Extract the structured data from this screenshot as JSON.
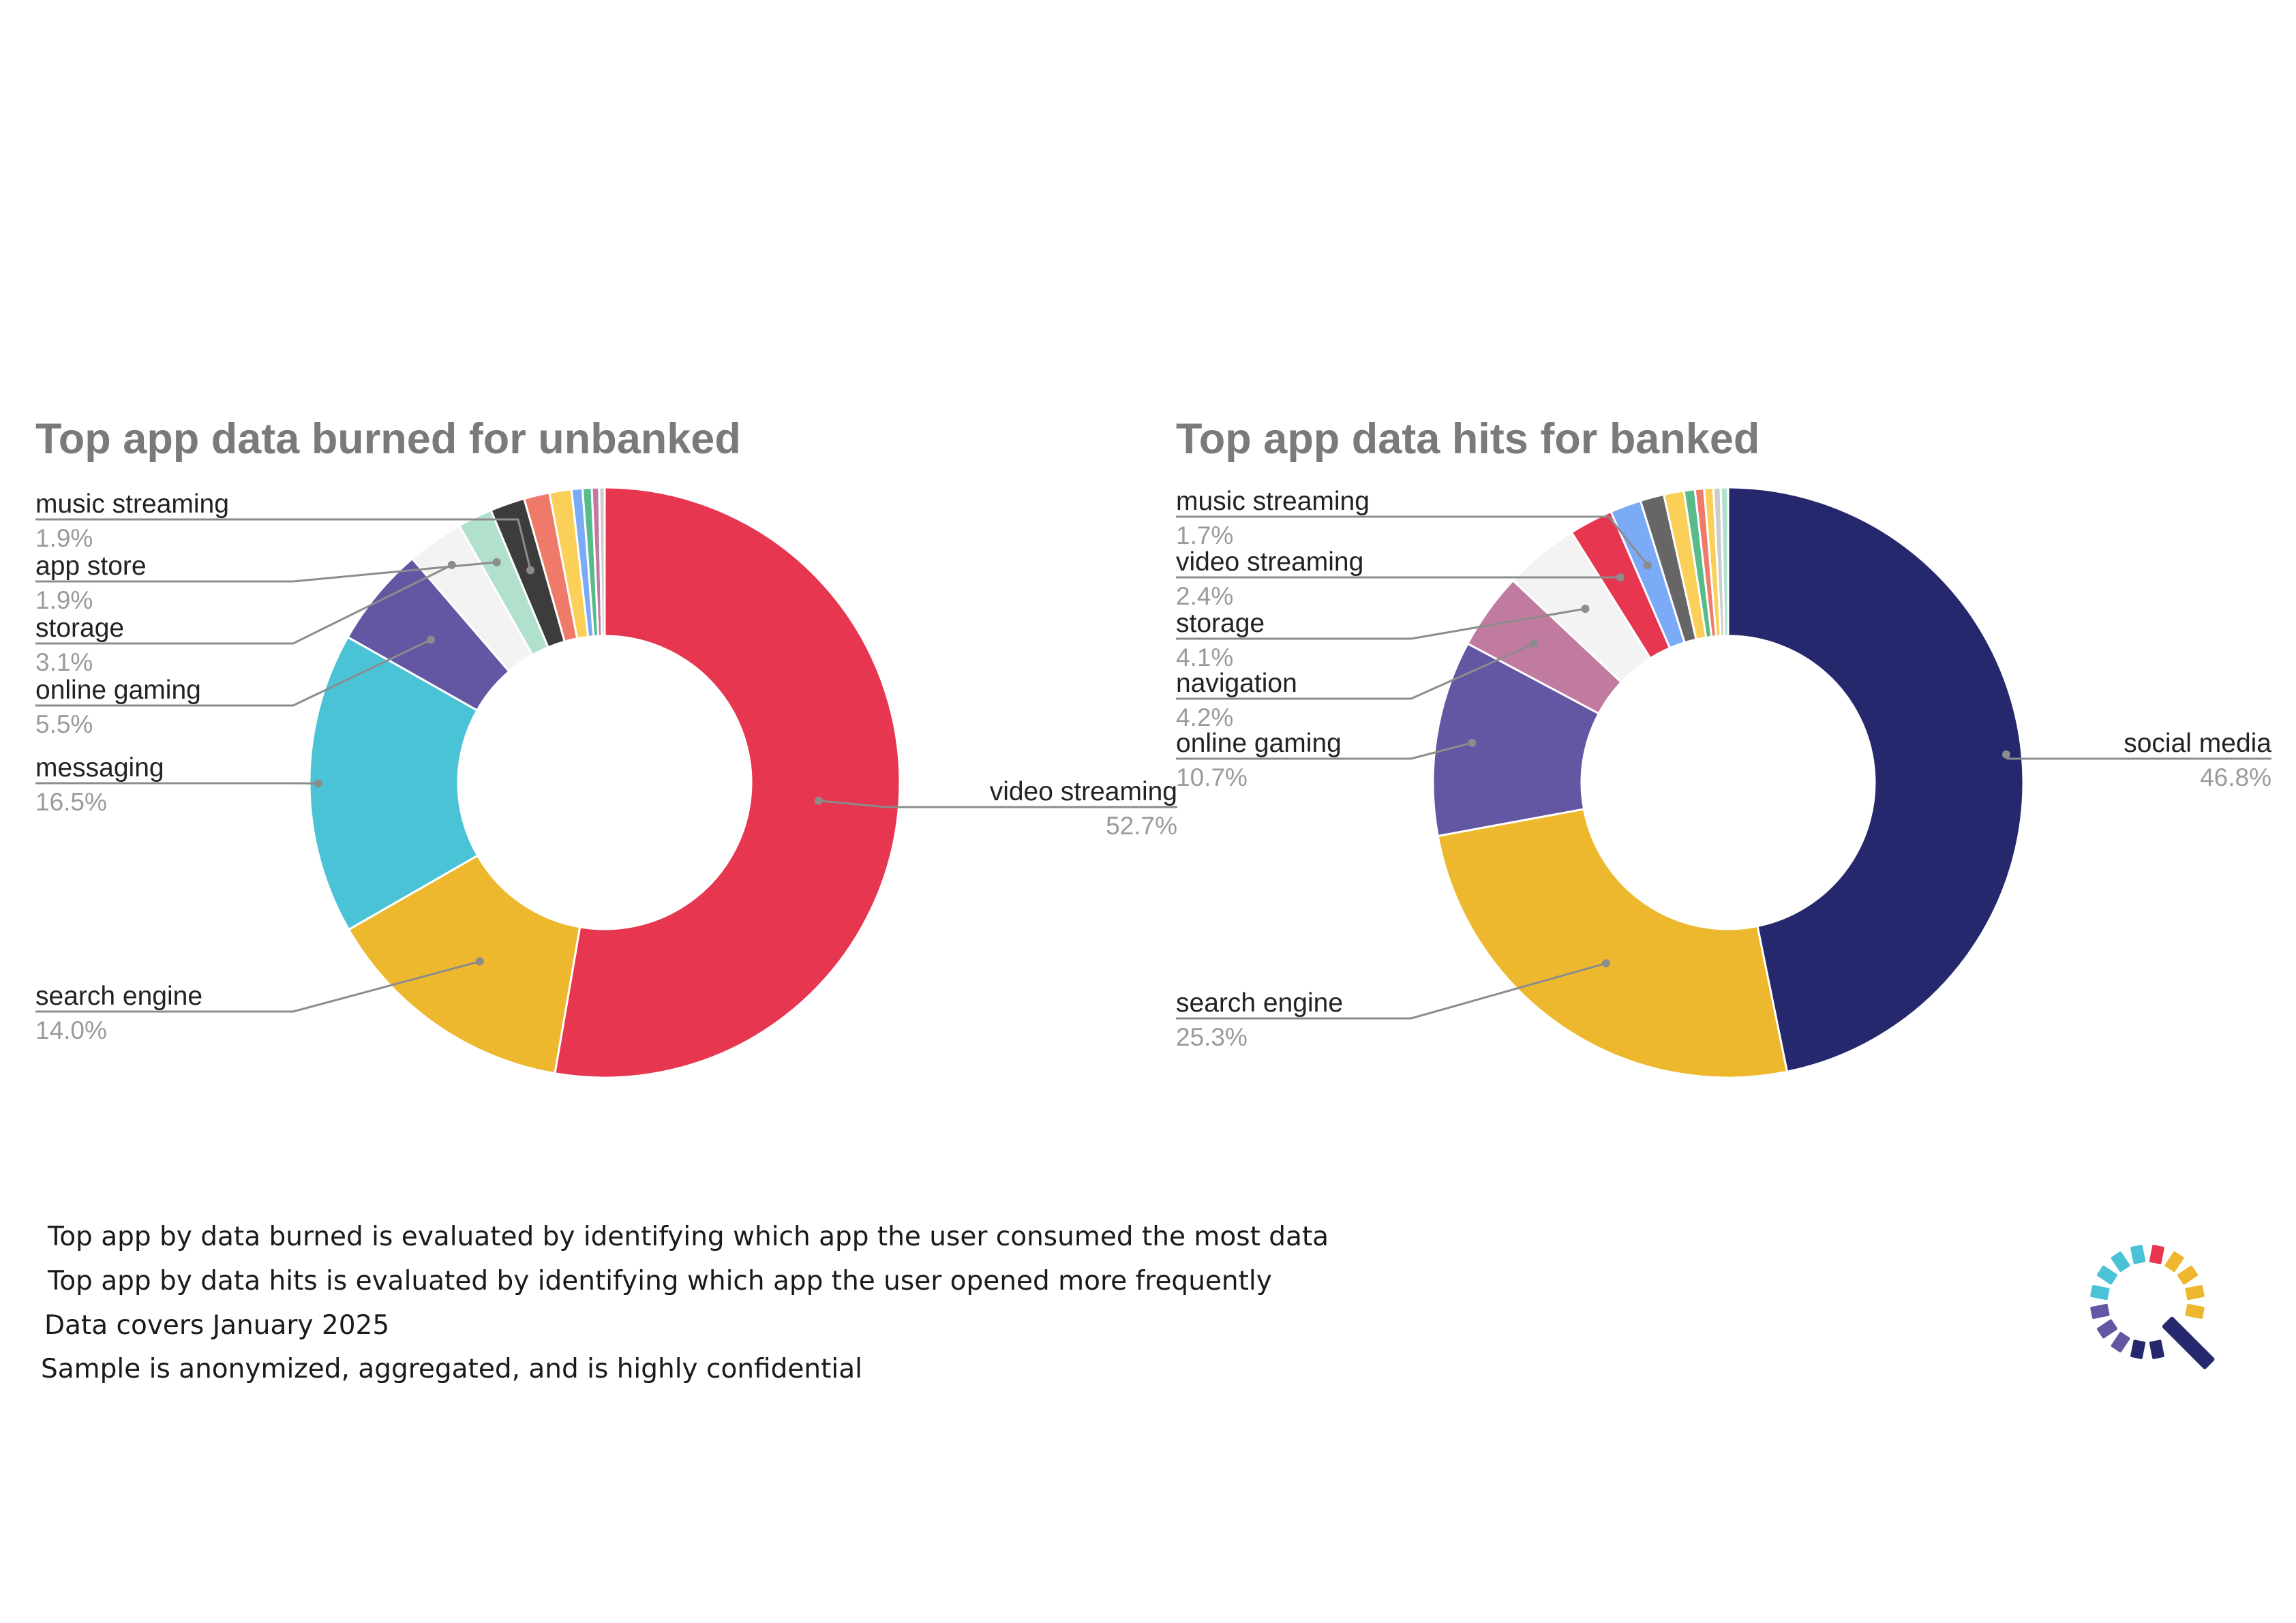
{
  "colors": {
    "video_streaming": "#e63650",
    "search_engine": "#edb82d",
    "messaging": "#4bc3d6",
    "online_gaming": "#6356a3",
    "storage": "#f3f3f3",
    "app_store": "#b1e1cd",
    "music_streaming": "#3c3c3c",
    "social_media": "#25286c",
    "navigation": "#c27ba0",
    "other_salmon": "#f07a6a",
    "other_yellow": "#fad058",
    "other_blue": "#7baaf7",
    "other_grey": "#666666",
    "other_green": "#57bb8a"
  },
  "chart_data": [
    {
      "type": "pie",
      "title": "Top app data burned for unbanked",
      "slices": [
        {
          "label": "video streaming",
          "value": 52.7,
          "value_label": "52.7%",
          "color": "#e63650"
        },
        {
          "label": "search engine",
          "value": 14.0,
          "value_label": "14.0%",
          "color": "#edb82d"
        },
        {
          "label": "messaging",
          "value": 16.5,
          "value_label": "16.5%",
          "color": "#4bc3d6"
        },
        {
          "label": "online gaming",
          "value": 5.5,
          "value_label": "5.5%",
          "color": "#6356a3"
        },
        {
          "label": "storage",
          "value": 3.1,
          "value_label": "3.1%",
          "color": "#f3f3f3"
        },
        {
          "label": "app store",
          "value": 1.9,
          "value_label": "1.9%",
          "color": "#b1e1cd"
        },
        {
          "label": "music streaming",
          "value": 1.9,
          "value_label": "1.9%",
          "color": "#3c3c3c"
        },
        {
          "label": "",
          "value": 1.4,
          "value_label": "",
          "color": "#f07a6a"
        },
        {
          "label": "",
          "value": 1.2,
          "value_label": "",
          "color": "#fad058"
        },
        {
          "label": "",
          "value": 0.6,
          "value_label": "",
          "color": "#7baaf7"
        },
        {
          "label": "",
          "value": 0.5,
          "value_label": "",
          "color": "#57bb8a"
        },
        {
          "label": "",
          "value": 0.4,
          "value_label": "",
          "color": "#c27ba0"
        },
        {
          "label": "",
          "value": 0.3,
          "value_label": "",
          "color": "#cccccc"
        }
      ]
    },
    {
      "type": "pie",
      "title": "Top app data hits for banked",
      "slices": [
        {
          "label": "social media",
          "value": 46.8,
          "value_label": "46.8%",
          "color": "#25286c"
        },
        {
          "label": "search engine",
          "value": 25.3,
          "value_label": "25.3%",
          "color": "#edb82d"
        },
        {
          "label": "online gaming",
          "value": 10.7,
          "value_label": "10.7%",
          "color": "#6356a3"
        },
        {
          "label": "navigation",
          "value": 4.2,
          "value_label": "4.2%",
          "color": "#c27ba0"
        },
        {
          "label": "storage",
          "value": 4.1,
          "value_label": "4.1%",
          "color": "#f3f3f3"
        },
        {
          "label": "video streaming",
          "value": 2.4,
          "value_label": "2.4%",
          "color": "#e63650"
        },
        {
          "label": "music streaming",
          "value": 1.7,
          "value_label": "1.7%",
          "color": "#7baaf7"
        },
        {
          "label": "",
          "value": 1.3,
          "value_label": "",
          "color": "#666666"
        },
        {
          "label": "",
          "value": 1.1,
          "value_label": "",
          "color": "#fad058"
        },
        {
          "label": "",
          "value": 0.6,
          "value_label": "",
          "color": "#57bb8a"
        },
        {
          "label": "",
          "value": 0.5,
          "value_label": "",
          "color": "#f07a6a"
        },
        {
          "label": "",
          "value": 0.5,
          "value_label": "",
          "color": "#fad058"
        },
        {
          "label": "",
          "value": 0.4,
          "value_label": "",
          "color": "#cccccc"
        },
        {
          "label": "",
          "value": 0.4,
          "value_label": "",
          "color": "#b1e1cd"
        }
      ]
    }
  ],
  "footnotes": [
    "Top app by data burned is evaluated by identifying which app the user consumed the most data",
    "Top app by data hits is evaluated by identifying which app the user opened more frequently",
    "Data covers January 2025",
    "Sample is anonymized, aggregated, and is highly confidential"
  ],
  "logo": {
    "icon": "ring-magnifier-logo-icon",
    "colors": [
      "#e63650",
      "#edb82d",
      "#25286c",
      "#6356a3",
      "#4bc3d6"
    ]
  }
}
